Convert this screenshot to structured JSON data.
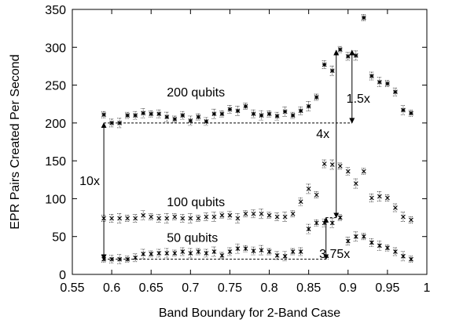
{
  "chart_data": {
    "type": "scatter",
    "xlabel": "Band Boundary for 2-Band Case",
    "ylabel": "EPR Pairs Created Per Second",
    "xlim": [
      0.55,
      1.0
    ],
    "ylim": [
      0,
      350
    ],
    "x_ticks": [
      "0.55",
      "0.6",
      "0.65",
      "0.7",
      "0.75",
      "0.8",
      "0.85",
      "0.9",
      "0.95",
      "1"
    ],
    "y_ticks": [
      "0",
      "50",
      "100",
      "150",
      "200",
      "250",
      "300",
      "350"
    ],
    "grid": false,
    "legend": "none",
    "error_bars": true,
    "series": [
      {
        "name": "200 qubits",
        "label_at": [
          0.67,
          235
        ],
        "x": [
          0.59,
          0.6,
          0.61,
          0.62,
          0.63,
          0.64,
          0.65,
          0.66,
          0.67,
          0.68,
          0.69,
          0.7,
          0.71,
          0.72,
          0.73,
          0.74,
          0.75,
          0.76,
          0.77,
          0.78,
          0.79,
          0.8,
          0.81,
          0.82,
          0.83,
          0.84,
          0.85,
          0.86,
          0.87,
          0.88,
          0.89,
          0.9,
          0.91,
          0.92,
          0.93,
          0.94,
          0.95,
          0.96,
          0.97,
          0.98
        ],
        "values": [
          211,
          200,
          200,
          210,
          210,
          213,
          212,
          212,
          208,
          205,
          210,
          203,
          208,
          202,
          212,
          212,
          218,
          216,
          222,
          212,
          210,
          212,
          209,
          215,
          210,
          216,
          222,
          234,
          277,
          269,
          297,
          288,
          289,
          339,
          262,
          254,
          252,
          241,
          217,
          213
        ]
      },
      {
        "name": "100 qubits",
        "label_at": [
          0.67,
          90
        ],
        "x": [
          0.59,
          0.6,
          0.61,
          0.62,
          0.63,
          0.64,
          0.65,
          0.66,
          0.67,
          0.68,
          0.69,
          0.7,
          0.71,
          0.72,
          0.73,
          0.74,
          0.75,
          0.76,
          0.77,
          0.78,
          0.79,
          0.8,
          0.81,
          0.82,
          0.83,
          0.84,
          0.85,
          0.86,
          0.87,
          0.88,
          0.89,
          0.9,
          0.91,
          0.92,
          0.93,
          0.94,
          0.95,
          0.96,
          0.97,
          0.98
        ],
        "values": [
          74,
          74,
          74,
          74,
          74,
          78,
          76,
          74,
          74,
          76,
          74,
          74,
          74,
          76,
          76,
          78,
          78,
          74,
          80,
          80,
          80,
          78,
          76,
          76,
          80,
          96,
          113,
          105,
          146,
          145,
          143,
          136,
          120,
          136,
          101,
          103,
          101,
          88,
          76,
          72
        ]
      },
      {
        "name": "50 qubits",
        "label_at": [
          0.67,
          43
        ],
        "x": [
          0.59,
          0.6,
          0.61,
          0.62,
          0.63,
          0.64,
          0.65,
          0.66,
          0.67,
          0.68,
          0.69,
          0.7,
          0.71,
          0.72,
          0.73,
          0.74,
          0.75,
          0.76,
          0.77,
          0.78,
          0.79,
          0.8,
          0.81,
          0.82,
          0.83,
          0.84,
          0.85,
          0.86,
          0.87,
          0.88,
          0.89,
          0.9,
          0.91,
          0.92,
          0.93,
          0.94,
          0.95,
          0.96,
          0.97,
          0.98
        ],
        "values": [
          20,
          20,
          20,
          20,
          22,
          27,
          27,
          28,
          28,
          28,
          30,
          28,
          30,
          28,
          30,
          25,
          30,
          34,
          34,
          31,
          32,
          30,
          25,
          24,
          30,
          30,
          60,
          68,
          68,
          68,
          75,
          44,
          50,
          50,
          42,
          38,
          35,
          30,
          24,
          20
        ]
      }
    ],
    "annotations": [
      {
        "text": "10x",
        "x": 0.572,
        "y": 118,
        "arrow": {
          "x": 0.59,
          "y_from": 20,
          "y_to": 200
        }
      },
      {
        "text": "4x",
        "x": 0.868,
        "y": 180,
        "arrow": {
          "x": 0.885,
          "y_from": 75,
          "y_to": 296
        }
      },
      {
        "text": "1.5x",
        "x": 0.913,
        "y": 227,
        "arrow": {
          "x": 0.905,
          "y_from": 200,
          "y_to": 296
        }
      },
      {
        "text": "3.75x",
        "x": 0.883,
        "y": 22,
        "arrow": {
          "x": 0.872,
          "y_from": 20,
          "y_to": 75
        }
      }
    ],
    "reference_lines": [
      {
        "y": 200,
        "x_from": 0.59,
        "x_to": 0.905
      },
      {
        "y": 20,
        "x_from": 0.59,
        "x_to": 0.875
      },
      {
        "y": 75,
        "x_from": 0.872,
        "x_to": 0.885
      }
    ]
  }
}
